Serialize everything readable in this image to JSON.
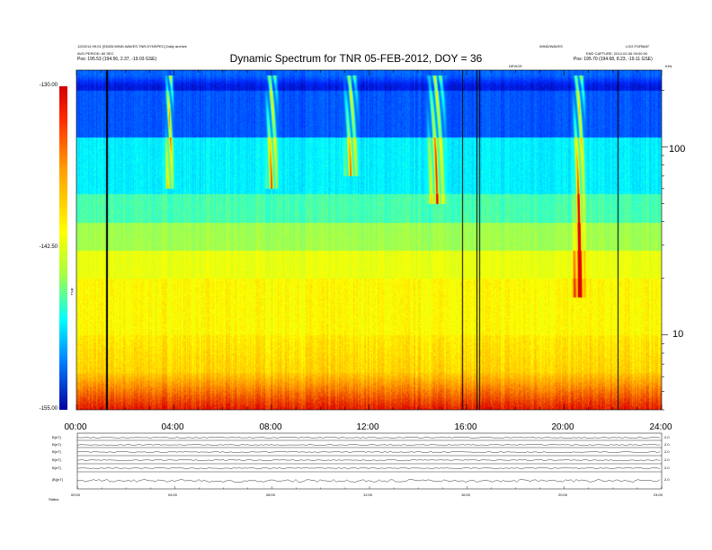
{
  "header": {
    "left_line1": "12/02/14 09:01 [SDDB.WIND.WAVES.TNR.DYNSPEC] Daily archive",
    "left_line2": "AVG PERIOD: 60 SEC",
    "left_line3_label": "Pos:",
    "left_line3_value": "195.53 (194.56, 2.37, -19.03 GSE)",
    "right_line1_left": "WIND/WAVES",
    "right_line1_right": "LOG FORMAT",
    "right_line2": "END CAPTURE: 2012-02-06 00:00:00",
    "right_line3_label": "Pos:",
    "right_line3_value": "195.70 (194.68, 8.23, -19.11 GSE)",
    "center_small": "DEVICE",
    "right_corner": "KHz"
  },
  "chart_data": {
    "type": "heatmap",
    "title": "Dynamic Spectrum for TNR 05-FEB-2012, DOY = 36",
    "xlabel": "",
    "ylabel": "",
    "x_ticks": [
      "00:00",
      "04:00",
      "08:00",
      "12:00",
      "16:00",
      "20:00",
      "24:00"
    ],
    "xlim_hours": [
      0,
      24
    ],
    "y_scale": "log",
    "ylim_khz": [
      4,
      256
    ],
    "y_ticks": [
      10,
      100
    ],
    "colorbar": {
      "label": "TNR",
      "ticks": [
        "-130.00",
        "-142.50",
        "-155.00"
      ],
      "range": [
        -155.0,
        -130.0
      ]
    },
    "data_gap_hours": [
      1.2,
      15.8,
      16.4,
      16.5,
      22.2
    ],
    "burst_events": [
      {
        "hour_start": 3.6,
        "hour_end": 4.0,
        "fmin_khz": 60,
        "fmax_khz": 240,
        "intensity": 1.0
      },
      {
        "hour_start": 7.7,
        "hour_end": 8.3,
        "fmin_khz": 60,
        "fmax_khz": 240,
        "intensity": 0.85
      },
      {
        "hour_start": 10.9,
        "hour_end": 11.6,
        "fmin_khz": 70,
        "fmax_khz": 240,
        "intensity": 0.8
      },
      {
        "hour_start": 14.3,
        "hour_end": 15.2,
        "fmin_khz": 50,
        "fmax_khz": 240,
        "intensity": 0.85
      },
      {
        "hour_start": 20.3,
        "hour_end": 20.9,
        "fmin_khz": 16,
        "fmax_khz": 240,
        "intensity": 0.9
      }
    ]
  },
  "panels": {
    "labels": [
      "B(nT)",
      "B(nT)",
      "B(nT)",
      "B(nT)",
      "B(nT)",
      "|B|(nT)"
    ],
    "right_ticks": [
      "2.0",
      "2.0",
      "2.0",
      "2.0",
      "2.0",
      "2.0"
    ],
    "x_ticks": [
      "00:00",
      "04:00",
      "08:00",
      "12:00",
      "16:00",
      "20:00",
      "24:00"
    ],
    "footer_label": "Status"
  }
}
